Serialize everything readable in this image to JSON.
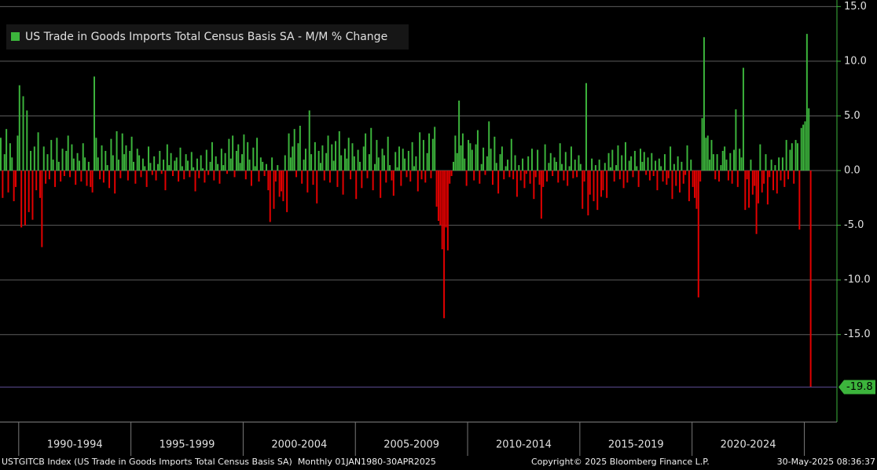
{
  "chart_data": {
    "type": "bar",
    "legend": "US Trade in Goods Imports Total Census Basis SA - M/M % Change",
    "positive_color": "#3cb43c",
    "negative_color": "#e30000",
    "period_labels": [
      "1990-1994",
      "1995-1999",
      "2000-2004",
      "2005-2009",
      "2010-2014",
      "2015-2019",
      "2020-2024"
    ],
    "ylim": [
      -23,
      15.6
    ],
    "yticks": [
      {
        "value": 15,
        "label": "15.0"
      },
      {
        "value": 10,
        "label": "10.0"
      },
      {
        "value": 5,
        "label": "5.0"
      },
      {
        "value": 0,
        "label": "0.0"
      },
      {
        "value": -5,
        "label": "-5.0"
      },
      {
        "value": -10,
        "label": "-10.0"
      },
      {
        "value": -15,
        "label": "-15.0"
      }
    ],
    "grid": true,
    "last_value_label": "-19.8",
    "values": [
      3.0,
      -2.5,
      1.5,
      3.8,
      -2.0,
      2.5,
      1.2,
      -2.8,
      -1.5,
      3.2,
      7.8,
      -5.2,
      6.8,
      -5.0,
      5.5,
      -3.8,
      1.8,
      -4.5,
      2.2,
      -1.8,
      3.5,
      -2.5,
      -7.0,
      2.2,
      -1.2,
      1.5,
      -0.8,
      2.8,
      1.0,
      -1.5,
      3.0,
      0.8,
      -1.0,
      2.0,
      -0.5,
      1.8,
      3.2,
      -0.6,
      2.4,
      1.1,
      -1.3,
      1.6,
      0.9,
      -1.0,
      2.5,
      1.2,
      -1.4,
      0.8,
      -1.5,
      -2.0,
      8.6,
      3.0,
      1.2,
      -0.8,
      2.3,
      -1.1,
      1.8,
      0.5,
      -1.6,
      2.9,
      1.4,
      -2.1,
      3.6,
      1.0,
      -0.7,
      3.4,
      1.5,
      2.3,
      -0.9,
      1.8,
      3.1,
      0.8,
      -1.2,
      2.0,
      1.4,
      -0.6,
      1.1,
      0.4,
      -1.5,
      2.2,
      0.7,
      -0.4,
      1.3,
      -0.9,
      0.6,
      1.8,
      -0.3,
      1.0,
      -1.8,
      2.4,
      0.5,
      1.6,
      -0.5,
      0.9,
      1.2,
      -1.0,
      2.1,
      0.4,
      -0.8,
      1.5,
      0.9,
      -0.6,
      1.7,
      0.3,
      -1.9,
      1.1,
      -0.7,
      1.4,
      0.2,
      -1.1,
      1.9,
      -0.4,
      0.8,
      2.6,
      -0.9,
      1.3,
      0.6,
      -1.2,
      2.0,
      0.5,
      1.6,
      -0.3,
      2.9,
      1.1,
      3.2,
      -0.6,
      1.8,
      2.4,
      0.7,
      1.5,
      3.3,
      -0.8,
      2.6,
      1.0,
      -1.4,
      2.1,
      0.4,
      3.0,
      -1.0,
      1.2,
      0.8,
      -0.5,
      0.6,
      -1.8,
      -4.7,
      1.2,
      -3.5,
      -1.0,
      0.5,
      -2.4,
      -1.9,
      -2.8,
      1.4,
      -3.8,
      3.4,
      1.2,
      2.2,
      3.8,
      -0.6,
      2.5,
      4.1,
      -1.2,
      1.0,
      2.0,
      -2.0,
      5.5,
      1.5,
      -1.3,
      2.6,
      -3.0,
      1.8,
      0.7,
      2.3,
      -0.9,
      1.6,
      3.2,
      -1.1,
      2.4,
      0.9,
      2.7,
      -1.5,
      3.6,
      1.4,
      -2.2,
      2.0,
      1.1,
      3.0,
      -0.8,
      2.5,
      1.3,
      -2.6,
      1.9,
      0.8,
      -1.6,
      2.2,
      3.4,
      -0.7,
      1.5,
      3.9,
      -1.8,
      0.6,
      2.8,
      1.2,
      -2.5,
      2.0,
      1.4,
      -1.1,
      3.1,
      0.5,
      -0.9,
      -2.3,
      1.7,
      0.3,
      2.2,
      -1.4,
      2.0,
      1.1,
      -0.6,
      1.8,
      -1.0,
      2.6,
      0.4,
      1.3,
      -1.9,
      3.5,
      -0.8,
      2.8,
      -1.1,
      1.6,
      3.4,
      -0.7,
      2.9,
      4.0,
      -3.3,
      -4.6,
      -5.0,
      -7.2,
      -13.5,
      -5.2,
      -7.3,
      -1.2,
      -0.5,
      0.8,
      3.2,
      1.6,
      6.4,
      2.3,
      3.4,
      1.1,
      -1.4,
      2.8,
      2.5,
      1.9,
      -0.9,
      2.4,
      3.7,
      -1.2,
      0.6,
      2.1,
      -0.4,
      1.3,
      4.5,
      2.0,
      -1.3,
      3.1,
      0.7,
      -2.1,
      1.5,
      2.2,
      -0.8,
      0.4,
      1.0,
      -0.6,
      2.9,
      -0.8,
      1.4,
      -2.4,
      0.5,
      -0.9,
      1.1,
      -1.6,
      -0.3,
      1.3,
      -1.2,
      2.0,
      -2.6,
      -0.6,
      1.9,
      -1.3,
      -4.4,
      -1.5,
      2.4,
      -1.0,
      0.7,
      1.6,
      -0.5,
      1.2,
      0.8,
      -1.1,
      2.5,
      0.6,
      -0.9,
      1.7,
      -1.4,
      0.4,
      2.2,
      -0.7,
      1.0,
      -0.6,
      1.4,
      0.6,
      -3.5,
      -1.0,
      8.0,
      -4.1,
      -2.2,
      1.1,
      -2.8,
      0.5,
      -3.6,
      1.0,
      -2.4,
      -1.8,
      0.7,
      -2.5,
      1.6,
      0.3,
      1.9,
      -1.0,
      0.5,
      2.3,
      -0.8,
      1.4,
      -1.6,
      2.6,
      -1.1,
      0.9,
      1.3,
      -0.6,
      1.8,
      0.4,
      -1.5,
      2.0,
      0.8,
      1.7,
      -0.4,
      1.2,
      -0.9,
      1.6,
      -0.5,
      0.9,
      -1.8,
      1.1,
      0.4,
      -1.0,
      1.5,
      -1.3,
      -0.7,
      2.2,
      -2.6,
      0.6,
      -1.4,
      1.3,
      -2.0,
      0.8,
      -1.2,
      -0.4,
      2.3,
      -2.8,
      1.0,
      -1.5,
      -2.5,
      -3.5,
      -11.6,
      -1.0,
      4.8,
      12.2,
      3.0,
      3.2,
      1.0,
      2.8,
      1.5,
      -0.8,
      1.5,
      -1.0,
      0.5,
      1.8,
      2.2,
      1.0,
      -0.9,
      1.6,
      -1.2,
      1.9,
      5.6,
      -1.5,
      2.0,
      1.2,
      9.4,
      -3.6,
      -0.8,
      -3.4,
      1.0,
      -2.2,
      -1.4,
      -5.8,
      -3.0,
      2.4,
      -2.0,
      -1.2,
      1.5,
      -3.1,
      -0.6,
      1.0,
      -1.8,
      0.5,
      -2.1,
      1.2,
      -0.9,
      1.2,
      -1.5,
      2.8,
      -0.8,
      1.9,
      2.5,
      -1.2,
      2.8,
      2.5,
      -5.4,
      3.9,
      4.2,
      4.5,
      12.5,
      5.7,
      -19.8
    ],
    "footer": {
      "source": "USTGITCB Index (US Trade in Goods Imports Total Census Basis SA)  Monthly 01JAN1980-30APR2025",
      "copyright": "Copyright© 2025 Bloomberg Finance L.P.",
      "timestamp": "30-May-2025 08:36:37"
    }
  }
}
